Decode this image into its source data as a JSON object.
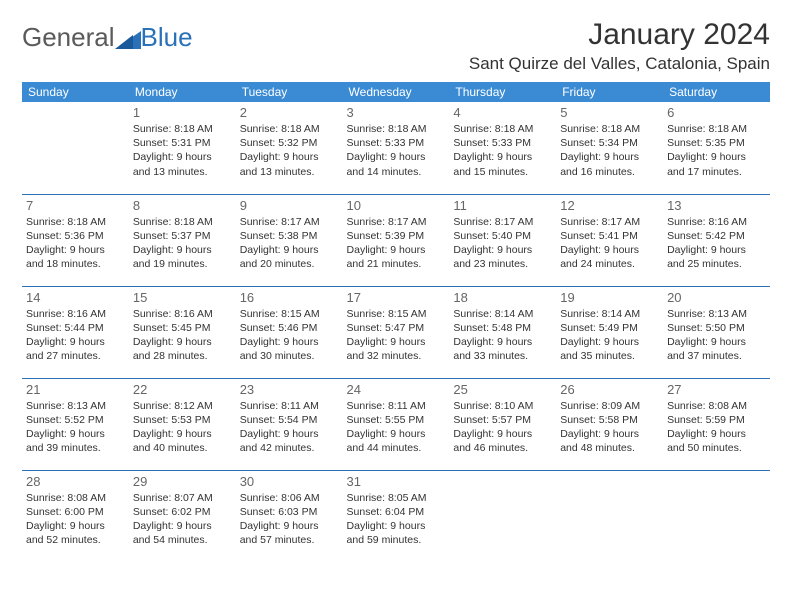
{
  "logo": {
    "text1": "General",
    "text2": "Blue"
  },
  "title": "January 2024",
  "location": "Sant Quirze del Valles, Catalonia, Spain",
  "colors": {
    "header_bg": "#3b8bd4",
    "header_text": "#ffffff",
    "border": "#2a71b8",
    "daynum": "#666666",
    "body_text": "#333333",
    "logo_gray": "#5a5a5a",
    "logo_blue": "#2a71b8"
  },
  "day_headers": [
    "Sunday",
    "Monday",
    "Tuesday",
    "Wednesday",
    "Thursday",
    "Friday",
    "Saturday"
  ],
  "first_weekday_index": 1,
  "days": [
    {
      "n": 1,
      "sunrise": "8:18 AM",
      "sunset": "5:31 PM",
      "daylight": "9 hours and 13 minutes."
    },
    {
      "n": 2,
      "sunrise": "8:18 AM",
      "sunset": "5:32 PM",
      "daylight": "9 hours and 13 minutes."
    },
    {
      "n": 3,
      "sunrise": "8:18 AM",
      "sunset": "5:33 PM",
      "daylight": "9 hours and 14 minutes."
    },
    {
      "n": 4,
      "sunrise": "8:18 AM",
      "sunset": "5:33 PM",
      "daylight": "9 hours and 15 minutes."
    },
    {
      "n": 5,
      "sunrise": "8:18 AM",
      "sunset": "5:34 PM",
      "daylight": "9 hours and 16 minutes."
    },
    {
      "n": 6,
      "sunrise": "8:18 AM",
      "sunset": "5:35 PM",
      "daylight": "9 hours and 17 minutes."
    },
    {
      "n": 7,
      "sunrise": "8:18 AM",
      "sunset": "5:36 PM",
      "daylight": "9 hours and 18 minutes."
    },
    {
      "n": 8,
      "sunrise": "8:18 AM",
      "sunset": "5:37 PM",
      "daylight": "9 hours and 19 minutes."
    },
    {
      "n": 9,
      "sunrise": "8:17 AM",
      "sunset": "5:38 PM",
      "daylight": "9 hours and 20 minutes."
    },
    {
      "n": 10,
      "sunrise": "8:17 AM",
      "sunset": "5:39 PM",
      "daylight": "9 hours and 21 minutes."
    },
    {
      "n": 11,
      "sunrise": "8:17 AM",
      "sunset": "5:40 PM",
      "daylight": "9 hours and 23 minutes."
    },
    {
      "n": 12,
      "sunrise": "8:17 AM",
      "sunset": "5:41 PM",
      "daylight": "9 hours and 24 minutes."
    },
    {
      "n": 13,
      "sunrise": "8:16 AM",
      "sunset": "5:42 PM",
      "daylight": "9 hours and 25 minutes."
    },
    {
      "n": 14,
      "sunrise": "8:16 AM",
      "sunset": "5:44 PM",
      "daylight": "9 hours and 27 minutes."
    },
    {
      "n": 15,
      "sunrise": "8:16 AM",
      "sunset": "5:45 PM",
      "daylight": "9 hours and 28 minutes."
    },
    {
      "n": 16,
      "sunrise": "8:15 AM",
      "sunset": "5:46 PM",
      "daylight": "9 hours and 30 minutes."
    },
    {
      "n": 17,
      "sunrise": "8:15 AM",
      "sunset": "5:47 PM",
      "daylight": "9 hours and 32 minutes."
    },
    {
      "n": 18,
      "sunrise": "8:14 AM",
      "sunset": "5:48 PM",
      "daylight": "9 hours and 33 minutes."
    },
    {
      "n": 19,
      "sunrise": "8:14 AM",
      "sunset": "5:49 PM",
      "daylight": "9 hours and 35 minutes."
    },
    {
      "n": 20,
      "sunrise": "8:13 AM",
      "sunset": "5:50 PM",
      "daylight": "9 hours and 37 minutes."
    },
    {
      "n": 21,
      "sunrise": "8:13 AM",
      "sunset": "5:52 PM",
      "daylight": "9 hours and 39 minutes."
    },
    {
      "n": 22,
      "sunrise": "8:12 AM",
      "sunset": "5:53 PM",
      "daylight": "9 hours and 40 minutes."
    },
    {
      "n": 23,
      "sunrise": "8:11 AM",
      "sunset": "5:54 PM",
      "daylight": "9 hours and 42 minutes."
    },
    {
      "n": 24,
      "sunrise": "8:11 AM",
      "sunset": "5:55 PM",
      "daylight": "9 hours and 44 minutes."
    },
    {
      "n": 25,
      "sunrise": "8:10 AM",
      "sunset": "5:57 PM",
      "daylight": "9 hours and 46 minutes."
    },
    {
      "n": 26,
      "sunrise": "8:09 AM",
      "sunset": "5:58 PM",
      "daylight": "9 hours and 48 minutes."
    },
    {
      "n": 27,
      "sunrise": "8:08 AM",
      "sunset": "5:59 PM",
      "daylight": "9 hours and 50 minutes."
    },
    {
      "n": 28,
      "sunrise": "8:08 AM",
      "sunset": "6:00 PM",
      "daylight": "9 hours and 52 minutes."
    },
    {
      "n": 29,
      "sunrise": "8:07 AM",
      "sunset": "6:02 PM",
      "daylight": "9 hours and 54 minutes."
    },
    {
      "n": 30,
      "sunrise": "8:06 AM",
      "sunset": "6:03 PM",
      "daylight": "9 hours and 57 minutes."
    },
    {
      "n": 31,
      "sunrise": "8:05 AM",
      "sunset": "6:04 PM",
      "daylight": "9 hours and 59 minutes."
    }
  ],
  "labels": {
    "sunrise_prefix": "Sunrise: ",
    "sunset_prefix": "Sunset: ",
    "daylight_prefix": "Daylight: "
  }
}
